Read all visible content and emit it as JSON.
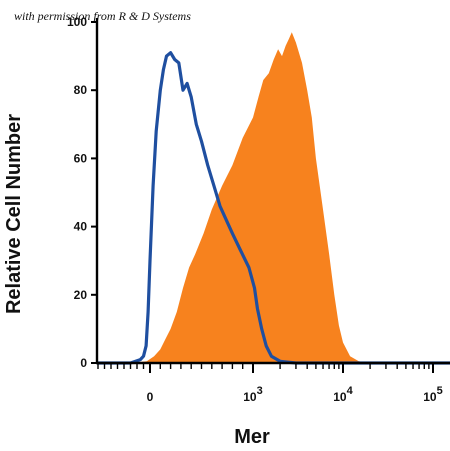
{
  "watermark": "with permission from R & D Systems",
  "chart_data": {
    "type": "area",
    "title": "",
    "xlabel": "Mer",
    "ylabel": "Relative Cell Number",
    "x_scale": "biexponential",
    "xlim": [
      -1400,
      200000
    ],
    "ylim": [
      0,
      100
    ],
    "y_ticks": [
      {
        "value": 0,
        "label": "0"
      },
      {
        "value": 20,
        "label": "20"
      },
      {
        "value": 40,
        "label": "40"
      },
      {
        "value": 60,
        "label": "60"
      },
      {
        "value": 80,
        "label": "80"
      },
      {
        "value": 100,
        "label": "100"
      }
    ],
    "x_ticks": [
      {
        "value": 0,
        "base": "0",
        "exp": ""
      },
      {
        "value": 1000,
        "base": "10",
        "exp": "3"
      },
      {
        "value": 10000,
        "base": "10",
        "exp": "4"
      },
      {
        "value": 100000,
        "base": "10",
        "exp": "5"
      }
    ],
    "colors": {
      "filled": "#f7821e",
      "outline": "#1f4fa0"
    },
    "series": [
      {
        "style": "filled",
        "x": [
          -1400,
          -300,
          -50,
          40,
          100,
          150,
          200,
          260,
          320,
          380,
          440,
          520,
          600,
          700,
          800,
          900,
          1000,
          1150,
          1300,
          1500,
          1700,
          1900,
          2100,
          2300,
          2500,
          2700,
          3000,
          3500,
          4000,
          4500,
          5000,
          6000,
          7000,
          8000,
          9000,
          10000,
          12000,
          15000,
          20000,
          200000
        ],
        "y": [
          0,
          0,
          0.5,
          2,
          4,
          7,
          10,
          15,
          22,
          28,
          32,
          38,
          45,
          52,
          58,
          66,
          72,
          78,
          83,
          85,
          89,
          92,
          90,
          93,
          95,
          97,
          94,
          88,
          80,
          72,
          60,
          45,
          32,
          20,
          11,
          6,
          2,
          0.5,
          0,
          0
        ]
      },
      {
        "style": "outline",
        "x": [
          -1400,
          -300,
          -150,
          -100,
          -60,
          -30,
          0,
          30,
          60,
          100,
          130,
          160,
          200,
          240,
          280,
          320,
          360,
          400,
          450,
          500,
          560,
          620,
          680,
          740,
          800,
          880,
          960,
          1040,
          1120,
          1250,
          1400,
          1600,
          2000,
          3000,
          10000,
          200000
        ],
        "y": [
          0,
          0,
          1,
          2,
          5,
          15,
          30,
          52,
          68,
          80,
          86,
          90,
          91,
          89,
          88,
          80,
          82,
          78,
          70,
          65,
          58,
          52,
          46,
          42,
          38,
          33,
          28,
          22,
          16,
          10,
          5,
          2,
          0.5,
          0,
          0,
          0
        ]
      }
    ]
  }
}
